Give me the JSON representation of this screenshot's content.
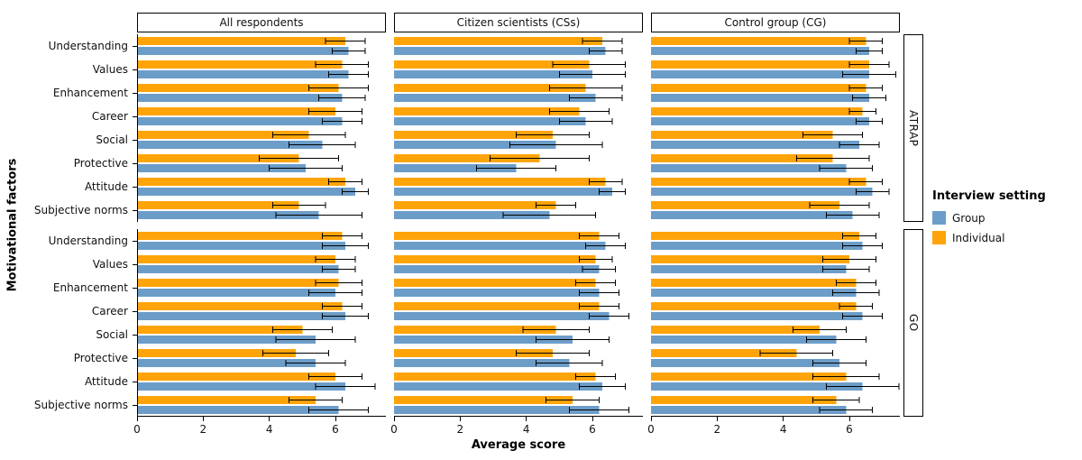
{
  "chart_data": {
    "type": "bar",
    "orientation": "horizontal",
    "xlabel": "Average score",
    "ylabel": "Motivational factors",
    "x_ticks": [
      0,
      2,
      4,
      6
    ],
    "x_max": 7.5,
    "grid": false,
    "legend_position": "right",
    "categories": [
      "Understanding",
      "Values",
      "Enhancement",
      "Career",
      "Social",
      "Protective",
      "Attitude",
      "Subjective norms"
    ],
    "col_facets": [
      "All respondents",
      "Citizen scientists (CSs)",
      "Control group (CG)"
    ],
    "row_facets": [
      "ATRAP",
      "GO"
    ],
    "legend": {
      "title": "Interview setting",
      "entries": [
        {
          "label": "Group",
          "color": "#6C9DC9"
        },
        {
          "label": "Individual",
          "color": "#FFA408"
        }
      ]
    },
    "error_bar_color": "#000000",
    "panels": [
      {
        "row_facet": "ATRAP",
        "col_facet": "All respondents",
        "individual": {
          "values": [
            6.3,
            6.2,
            6.1,
            6.0,
            5.2,
            4.9,
            6.3,
            4.9
          ],
          "errors": [
            0.6,
            0.8,
            0.9,
            0.8,
            1.1,
            1.2,
            0.5,
            0.8
          ]
        },
        "group": {
          "values": [
            6.4,
            6.4,
            6.2,
            6.2,
            5.6,
            5.1,
            6.6,
            5.5
          ],
          "errors": [
            0.5,
            0.6,
            0.7,
            0.6,
            1.0,
            1.1,
            0.4,
            1.3
          ]
        }
      },
      {
        "row_facet": "ATRAP",
        "col_facet": "Citizen scientists (CSs)",
        "individual": {
          "values": [
            6.3,
            5.9,
            5.8,
            5.6,
            4.8,
            4.4,
            6.4,
            4.9
          ],
          "errors": [
            0.6,
            1.1,
            1.1,
            0.9,
            1.1,
            1.5,
            0.5,
            0.6
          ]
        },
        "group": {
          "values": [
            6.4,
            6.0,
            6.1,
            5.8,
            4.9,
            3.7,
            6.6,
            4.7
          ],
          "errors": [
            0.5,
            1.0,
            0.8,
            0.8,
            1.4,
            1.2,
            0.4,
            1.4
          ]
        }
      },
      {
        "row_facet": "ATRAP",
        "col_facet": "Control group (CG)",
        "individual": {
          "values": [
            6.5,
            6.6,
            6.5,
            6.4,
            5.5,
            5.5,
            6.5,
            5.7
          ],
          "errors": [
            0.5,
            0.6,
            0.5,
            0.4,
            0.9,
            1.1,
            0.5,
            0.9
          ]
        },
        "group": {
          "values": [
            6.6,
            6.6,
            6.6,
            6.6,
            6.3,
            5.9,
            6.7,
            6.1
          ],
          "errors": [
            0.4,
            0.8,
            0.5,
            0.4,
            0.6,
            0.8,
            0.5,
            0.8
          ]
        }
      },
      {
        "row_facet": "GO",
        "col_facet": "All respondents",
        "individual": {
          "values": [
            6.2,
            6.0,
            6.1,
            6.2,
            5.0,
            4.8,
            6.0,
            5.4
          ],
          "errors": [
            0.6,
            0.6,
            0.7,
            0.6,
            0.9,
            1.0,
            0.8,
            0.8
          ]
        },
        "group": {
          "values": [
            6.3,
            6.1,
            6.0,
            6.3,
            5.4,
            5.4,
            6.3,
            6.1
          ],
          "errors": [
            0.7,
            0.5,
            0.8,
            0.7,
            1.2,
            0.9,
            0.9,
            0.9
          ]
        }
      },
      {
        "row_facet": "GO",
        "col_facet": "Citizen scientists (CSs)",
        "individual": {
          "values": [
            6.2,
            6.1,
            6.1,
            6.2,
            4.9,
            4.8,
            6.1,
            5.4
          ],
          "errors": [
            0.6,
            0.5,
            0.6,
            0.6,
            1.0,
            1.1,
            0.6,
            0.8
          ]
        },
        "group": {
          "values": [
            6.4,
            6.2,
            6.2,
            6.5,
            5.4,
            5.3,
            6.3,
            6.2
          ],
          "errors": [
            0.6,
            0.5,
            0.6,
            0.6,
            1.1,
            1.0,
            0.7,
            0.9
          ]
        }
      },
      {
        "row_facet": "GO",
        "col_facet": "Control group (CG)",
        "individual": {
          "values": [
            6.3,
            6.0,
            6.2,
            6.2,
            5.1,
            4.4,
            5.9,
            5.6
          ],
          "errors": [
            0.5,
            0.8,
            0.6,
            0.5,
            0.8,
            1.1,
            1.0,
            0.7
          ]
        },
        "group": {
          "values": [
            6.4,
            5.9,
            6.2,
            6.4,
            5.6,
            5.7,
            6.4,
            5.9
          ],
          "errors": [
            0.6,
            0.7,
            0.7,
            0.6,
            0.9,
            0.8,
            1.1,
            0.8
          ]
        }
      }
    ]
  }
}
